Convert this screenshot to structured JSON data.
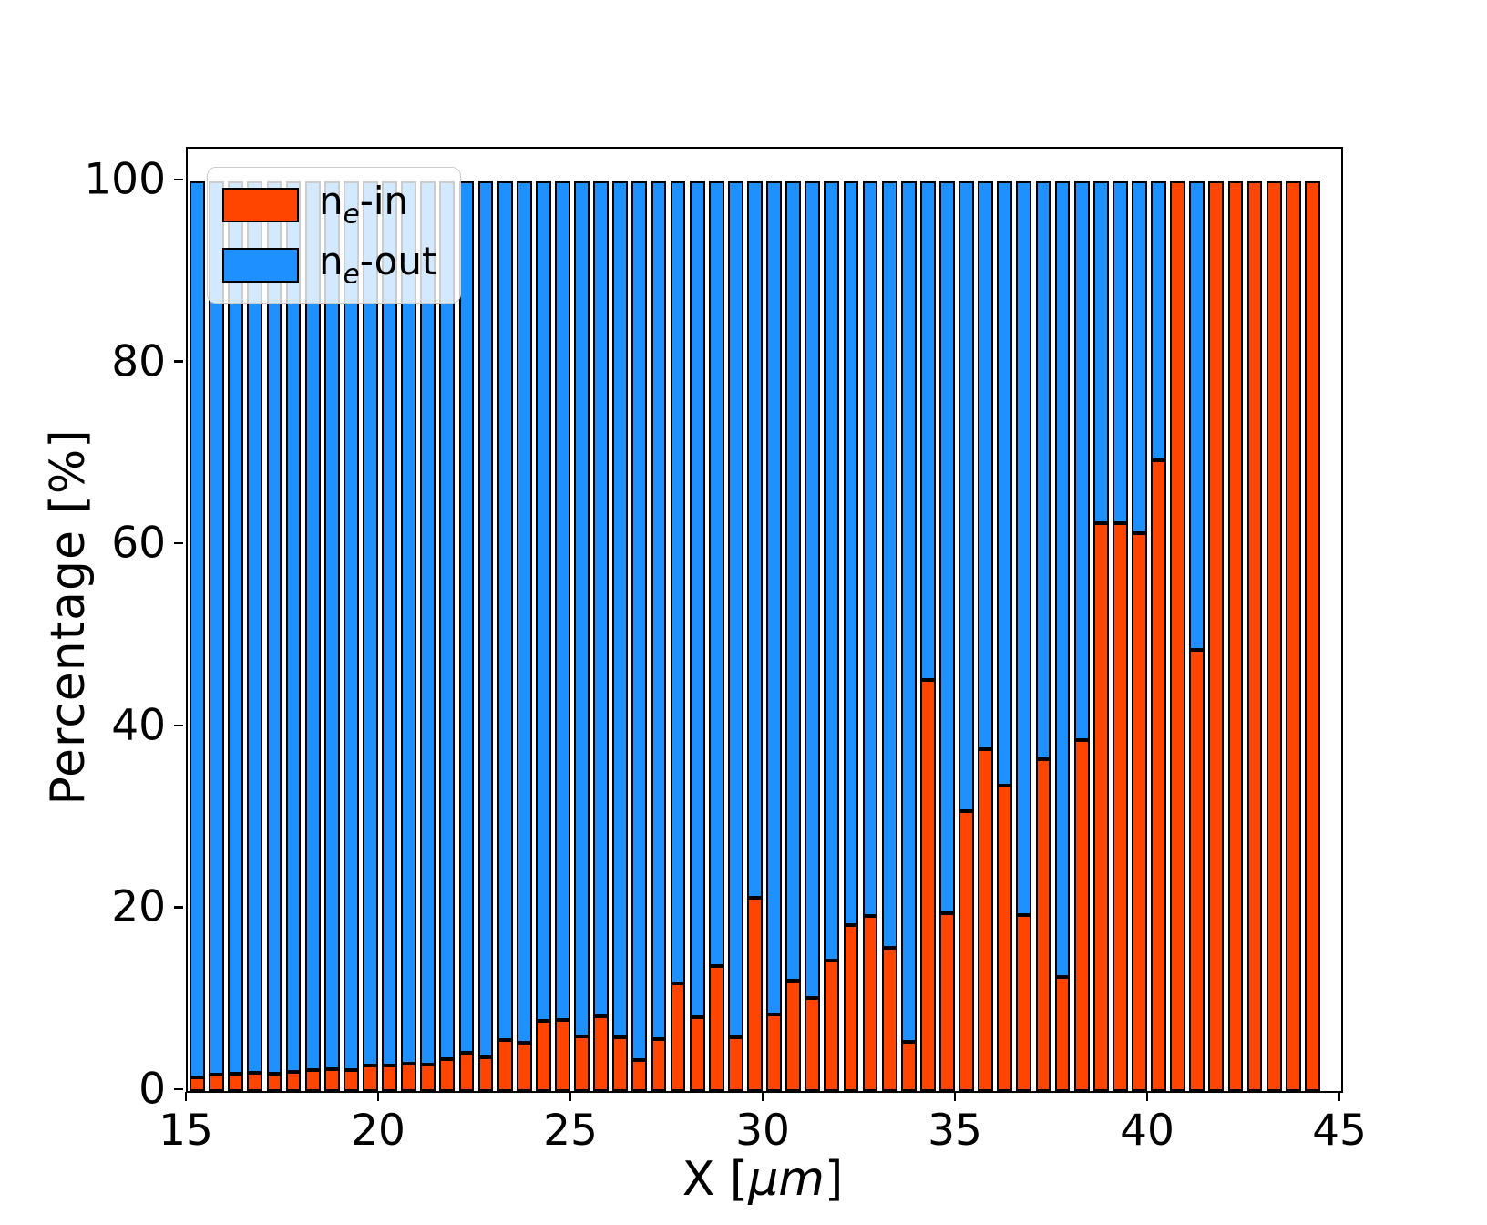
{
  "chart_data": {
    "type": "bar",
    "stacked": true,
    "percent_stack": true,
    "x": [
      15.25,
      15.75,
      16.25,
      16.75,
      17.25,
      17.75,
      18.25,
      18.75,
      19.25,
      19.75,
      20.25,
      20.75,
      21.25,
      21.75,
      22.25,
      22.75,
      23.25,
      23.75,
      24.25,
      24.75,
      25.25,
      25.75,
      26.25,
      26.75,
      27.25,
      27.75,
      28.25,
      28.75,
      29.25,
      29.75,
      30.25,
      30.75,
      31.25,
      31.75,
      32.25,
      32.75,
      33.25,
      33.75,
      34.25,
      34.75,
      35.25,
      35.75,
      36.25,
      36.75,
      37.25,
      37.75,
      38.25,
      38.75,
      39.25,
      39.75,
      40.25,
      40.75,
      41.25,
      41.75,
      42.25,
      42.75,
      43.25,
      43.75,
      44.25
    ],
    "bar_width": 0.4,
    "series": [
      {
        "name": "ne-in",
        "color": "#FF4500",
        "values": [
          1.5,
          1.8,
          1.9,
          2.0,
          1.9,
          2.1,
          2.3,
          2.4,
          2.3,
          2.8,
          2.8,
          3.0,
          2.9,
          3.5,
          4.2,
          3.7,
          5.6,
          5.3,
          7.7,
          7.8,
          6.0,
          8.2,
          5.9,
          3.4,
          5.7,
          11.8,
          8.1,
          13.7,
          5.9,
          21.2,
          8.4,
          12.1,
          10.2,
          14.3,
          18.2,
          19.2,
          15.7,
          5.4,
          45.2,
          19.5,
          30.8,
          37.6,
          33.6,
          19.3,
          36.5,
          12.5,
          38.6,
          62.4,
          62.4,
          61.3,
          69.3,
          100,
          48.5,
          100,
          100,
          100,
          100,
          100,
          100
        ]
      },
      {
        "name": "ne-out",
        "color": "#1E90FF",
        "values": [
          98.5,
          98.2,
          98.1,
          98.0,
          98.1,
          97.9,
          97.7,
          97.6,
          97.7,
          97.2,
          97.2,
          97.0,
          97.1,
          96.5,
          95.8,
          96.3,
          94.4,
          94.7,
          92.3,
          92.2,
          94.0,
          91.8,
          94.1,
          96.6,
          94.3,
          88.2,
          91.9,
          86.3,
          94.1,
          78.8,
          91.6,
          87.9,
          89.8,
          85.7,
          81.8,
          80.8,
          84.3,
          94.6,
          54.8,
          80.5,
          69.2,
          62.4,
          66.4,
          80.7,
          63.5,
          87.5,
          61.4,
          37.6,
          37.6,
          38.7,
          30.7,
          0,
          51.5,
          0,
          0,
          0,
          0,
          0,
          0
        ]
      }
    ],
    "title": "",
    "xlabel": "X [um]",
    "ylabel": "Percentage [%]",
    "xlim": [
      15,
      45
    ],
    "ylim": [
      0,
      103.6
    ],
    "xticks": [
      15,
      20,
      25,
      30,
      35,
      40,
      45
    ],
    "yticks": [
      0,
      20,
      40,
      60,
      80,
      100
    ],
    "grid": false,
    "legend_position": "upper left",
    "edge_color": "#000000"
  },
  "labels": {
    "xlabel_prefix": "X  [",
    "xlabel_unit": "μm",
    "xlabel_suffix": "]",
    "ylabel": "Percentage  [%]",
    "legend": [
      {
        "prefix": "n",
        "sub": "e",
        "suffix": "-in",
        "color": "#FF4500"
      },
      {
        "prefix": "n",
        "sub": "e",
        "suffix": "-out",
        "color": "#1E90FF"
      }
    ]
  },
  "colors": {
    "ne_in": "#FF4500",
    "ne_out": "#1E90FF",
    "edge": "#000000",
    "legend_border": "#cccccc"
  }
}
